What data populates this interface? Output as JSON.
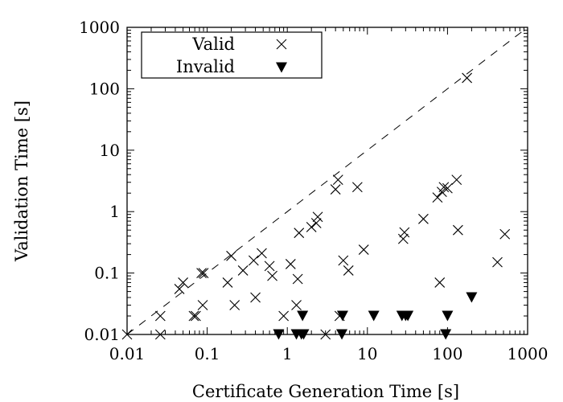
{
  "chart_data": {
    "type": "scatter",
    "xlabel": "Certificate Generation Time [s]",
    "ylabel": "Validation Time [s]",
    "xscale": "log",
    "yscale": "log",
    "xlim": [
      0.01,
      1000
    ],
    "ylim": [
      0.01,
      1000
    ],
    "xticks": [
      "0.01",
      "0.1",
      "1",
      "10",
      "100",
      "1000"
    ],
    "yticks": [
      "0.01",
      "0.1",
      "1",
      "10",
      "100",
      "1000"
    ],
    "xtick_values": [
      0.01,
      0.1,
      1,
      10,
      100,
      1000
    ],
    "ytick_values": [
      0.01,
      0.1,
      1,
      10,
      100,
      1000
    ],
    "grid": false,
    "legend": {
      "position": "top-left"
    },
    "reference_line": {
      "style": "dashed",
      "equation": "y = x"
    },
    "series": [
      {
        "name": "Valid",
        "marker": "x",
        "points": [
          [
            0.01,
            0.01
          ],
          [
            0.026,
            0.02
          ],
          [
            0.026,
            0.01
          ],
          [
            0.045,
            0.055
          ],
          [
            0.05,
            0.07
          ],
          [
            0.068,
            0.02
          ],
          [
            0.072,
            0.02
          ],
          [
            0.085,
            0.1
          ],
          [
            0.09,
            0.1
          ],
          [
            0.088,
            0.03
          ],
          [
            0.18,
            0.07
          ],
          [
            0.2,
            0.19
          ],
          [
            0.22,
            0.03
          ],
          [
            0.28,
            0.11
          ],
          [
            0.38,
            0.16
          ],
          [
            0.4,
            0.04
          ],
          [
            0.48,
            0.21
          ],
          [
            0.6,
            0.13
          ],
          [
            0.65,
            0.09
          ],
          [
            0.9,
            0.02
          ],
          [
            1.1,
            0.14
          ],
          [
            1.3,
            0.03
          ],
          [
            1.35,
            0.08
          ],
          [
            1.4,
            0.45
          ],
          [
            2.0,
            0.56
          ],
          [
            2.3,
            0.65
          ],
          [
            2.4,
            0.82
          ],
          [
            3.0,
            0.01
          ],
          [
            4.0,
            2.3
          ],
          [
            4.3,
            3.3
          ],
          [
            4.5,
            0.02
          ],
          [
            5.0,
            0.16
          ],
          [
            5.8,
            0.11
          ],
          [
            7.5,
            2.5
          ],
          [
            9.0,
            0.24
          ],
          [
            28,
            0.36
          ],
          [
            29,
            0.46
          ],
          [
            50,
            0.76
          ],
          [
            75,
            1.7
          ],
          [
            80,
            0.07
          ],
          [
            85,
            2.1
          ],
          [
            90,
            2.5
          ],
          [
            100,
            2.4
          ],
          [
            130,
            3.3
          ],
          [
            135,
            0.5
          ],
          [
            175,
            150
          ],
          [
            420,
            0.15
          ],
          [
            520,
            0.43
          ]
        ]
      },
      {
        "name": "Invalid",
        "marker": "triangle-down",
        "points": [
          [
            0.78,
            0.01
          ],
          [
            1.3,
            0.01
          ],
          [
            1.5,
            0.01
          ],
          [
            1.6,
            0.01
          ],
          [
            1.55,
            0.02
          ],
          [
            4.8,
            0.01
          ],
          [
            4.9,
            0.02
          ],
          [
            12,
            0.02
          ],
          [
            27,
            0.02
          ],
          [
            30,
            0.02
          ],
          [
            32,
            0.02
          ],
          [
            95,
            0.01
          ],
          [
            100,
            0.02
          ],
          [
            200,
            0.04
          ]
        ]
      }
    ]
  }
}
